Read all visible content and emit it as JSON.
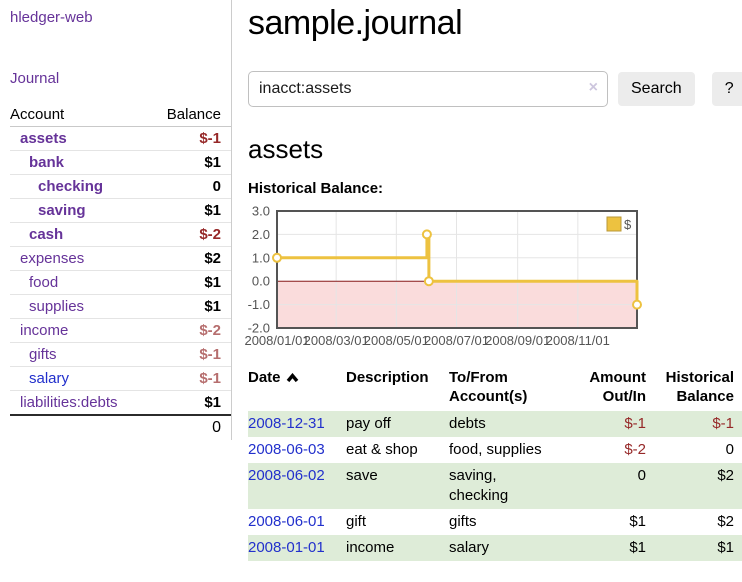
{
  "app": {
    "name": "hledger-web"
  },
  "sidebar": {
    "nav_journal": "Journal",
    "table": {
      "headers": {
        "account": "Account",
        "balance": "Balance"
      },
      "rows": [
        {
          "name": "assets",
          "balance": "$-1"
        },
        {
          "name": "bank",
          "balance": "$1"
        },
        {
          "name": "checking",
          "balance": "0"
        },
        {
          "name": "saving",
          "balance": "$1"
        },
        {
          "name": "cash",
          "balance": "$-2"
        },
        {
          "name": "expenses",
          "balance": "$2"
        },
        {
          "name": "food",
          "balance": "$1"
        },
        {
          "name": "supplies",
          "balance": "$1"
        },
        {
          "name": "income",
          "balance": "$-2"
        },
        {
          "name": "gifts",
          "balance": "$-1"
        },
        {
          "name": "salary",
          "balance": "$-1"
        },
        {
          "name": "liabilities:debts",
          "balance": "$1"
        }
      ],
      "total": "0"
    }
  },
  "main": {
    "title": "sample.journal",
    "search": {
      "value": "inacct:assets",
      "clear": "×",
      "button": "Search",
      "help": "?"
    },
    "section_heading": "assets",
    "chart_label": "Historical Balance:",
    "register": {
      "headers": {
        "date": "Date",
        "description": "Description",
        "accounts": "To/From Account(s)",
        "amount": "Amount Out/In",
        "historical": "Historical Balance"
      },
      "rows": [
        {
          "date": "2008-12-31",
          "description": "pay off",
          "accounts": "debts",
          "amount": "$-1",
          "balance": "$-1"
        },
        {
          "date": "2008-06-03",
          "description": "eat & shop",
          "accounts": "food, supplies",
          "amount": "$-2",
          "balance": "0"
        },
        {
          "date": "2008-06-02",
          "description": "save",
          "accounts": "saving, checking",
          "amount": "0",
          "balance": "$2"
        },
        {
          "date": "2008-06-01",
          "description": "gift",
          "accounts": "gifts",
          "amount": "$1",
          "balance": "$2"
        },
        {
          "date": "2008-01-01",
          "description": "income",
          "accounts": "salary",
          "amount": "$1",
          "balance": "$1"
        }
      ]
    }
  },
  "chart_data": {
    "type": "line",
    "step": true,
    "title": "Historical Balance:",
    "series": [
      {
        "name": "$",
        "points": [
          [
            "2008-01-01",
            1.0
          ],
          [
            "2008-06-01",
            2.0
          ],
          [
            "2008-06-03",
            0.0
          ],
          [
            "2008-12-31",
            -1.0
          ]
        ]
      }
    ],
    "x_range": [
      "2008-01-01",
      "2008-12-31"
    ],
    "ylim": [
      -2.0,
      3.0
    ],
    "yticks": [
      {
        "value": 3,
        "label": "3.0"
      },
      {
        "value": 2,
        "label": "2.0"
      },
      {
        "value": 1,
        "label": "1.0"
      },
      {
        "value": 0,
        "label": "0.0"
      },
      {
        "value": -1,
        "label": "-1.0"
      },
      {
        "value": -2,
        "label": "-2.0"
      }
    ],
    "xticks": [
      {
        "date": "2008-01-01",
        "label": "2008/01/01"
      },
      {
        "date": "2008-03-01",
        "label": "2008/03/01"
      },
      {
        "date": "2008-05-01",
        "label": "2008/05/01"
      },
      {
        "date": "2008-07-01",
        "label": "2008/07/01"
      },
      {
        "date": "2008-09-01",
        "label": "2008/09/01"
      },
      {
        "date": "2008-11-01",
        "label": "2008/11/01"
      }
    ],
    "legend": {
      "label": "$",
      "position": "top-right"
    },
    "grid": true,
    "negative_region_shaded": true,
    "colors": {
      "line": "#edc240",
      "marker_fill": "#ffffff",
      "legend_box_border": "#b9983a",
      "negative_fill": "#fadcdc",
      "zero_line": "#8b1a1a",
      "grid": "#e5e5e5",
      "border": "#545454",
      "tick_text": "#545454",
      "accent_purple": "#663399",
      "link_blue": "#2230cc",
      "negative_strong": "#962828",
      "negative_muted": "#b66e6e",
      "row_green": "#deecd8"
    }
  }
}
